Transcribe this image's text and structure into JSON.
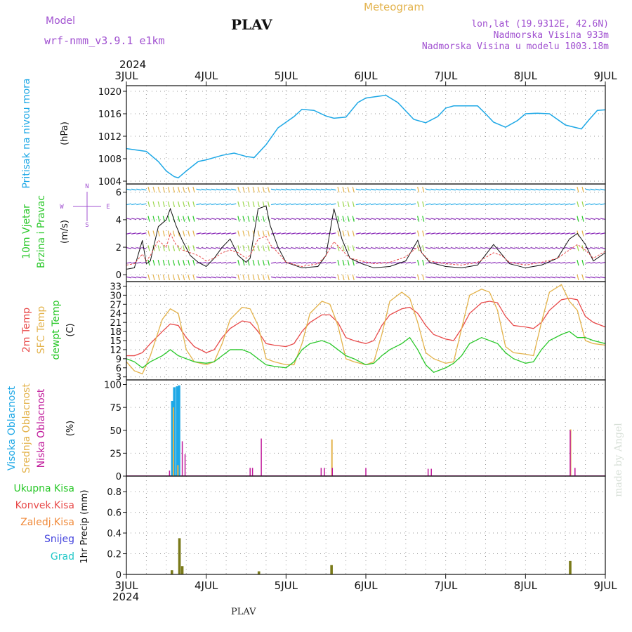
{
  "header": {
    "title": "PLAV",
    "model_label": "Model",
    "model_name": "wrf-nmm_v3.9.1 e1km",
    "meteogram_label": "Meteogram",
    "lonlat": "lon,lat (19.9312E, 42.6N)",
    "elevation": "Nadmorska Visina 933m",
    "model_elevation": "Nadmorska Visina u modelu 1003.18m",
    "year": "2024",
    "footer_title": "PLAV",
    "credit": "made by Angel"
  },
  "colors": {
    "pressure": "#1ea8e6",
    "temp2m": "#e84a4a",
    "sfc": "#e3b24a",
    "dewpt": "#2ac82a",
    "high_cloud": "#1ea8e6",
    "mid_cloud": "#e3b24a",
    "low_cloud": "#c0189a",
    "precip": "#7a7a1a",
    "label_green": "#2ac82a",
    "label_red": "#e84a4a",
    "label_orange": "#f08a3a",
    "label_blue": "#4444dd",
    "label_cyan": "#22c8c8",
    "label_purple": "#a050d0"
  },
  "x_axis": {
    "tick_labels": [
      "3JUL",
      "4JUL",
      "5JUL",
      "6JUL",
      "7JUL",
      "8JUL",
      "9JUL"
    ],
    "year_label": "2024"
  },
  "panels": {
    "pressure": {
      "ylabel_left": "Pritisak na nivou mora",
      "unit": "(hPa)",
      "ticks": [
        "1004",
        "1008",
        "1012",
        "1016",
        "1020"
      ]
    },
    "wind": {
      "ylabel_left1": "10m Vjetar",
      "ylabel_left2": "Brzina i Pravac",
      "unit": "(m/s)",
      "ticks": [
        "0",
        "2",
        "4",
        "6"
      ],
      "compass_n": "N",
      "compass_s": "S",
      "compass_w": "W",
      "compass_e": "E"
    },
    "temp": {
      "label_2m": "2m Temp",
      "label_sfc": "SFC Temp",
      "label_dew": "dewpt Temp",
      "unit": "(C)",
      "ticks": [
        "3",
        "6",
        "9",
        "12",
        "15",
        "18",
        "21",
        "24",
        "27",
        "30",
        "33"
      ]
    },
    "cloud": {
      "label_high": "Visoka Oblacnost",
      "label_mid": "Srednja Oblacnost",
      "label_low": "Niska Oblacnost",
      "unit": "(%)",
      "ticks": [
        "0",
        "25",
        "50",
        "75",
        "100"
      ]
    },
    "precip": {
      "labels": [
        "Ukupna Kisa",
        "Konvek.Kisa",
        "Zaledj.Kisa",
        "Snijeg",
        "Grad"
      ],
      "unit": "1hr Precip (mm)",
      "ticks": [
        "0",
        "0.2",
        "0.4",
        "0.6",
        "0.8"
      ]
    }
  },
  "chart_data": [
    {
      "type": "line",
      "title": "Pritisak na nivou mora",
      "ylabel": "(hPa)",
      "ylim": [
        1003.5,
        1021
      ],
      "x_unit": "days since 3JUL 00UTC",
      "x": [
        0.0,
        0.25,
        0.4,
        0.5,
        0.6,
        0.65,
        0.75,
        0.9,
        1.0,
        1.2,
        1.35,
        1.5,
        1.6,
        1.75,
        1.9,
        2.0,
        2.1,
        2.2,
        2.35,
        2.5,
        2.6,
        2.75,
        2.9,
        3.0,
        3.1,
        3.25,
        3.4,
        3.5,
        3.6,
        3.75,
        3.9,
        4.0,
        4.1,
        4.25,
        4.4,
        4.5,
        4.6,
        4.75,
        4.9,
        5.0,
        5.15,
        5.3,
        5.5,
        5.7,
        5.8,
        5.9,
        6.0
      ],
      "values": [
        1009.8,
        1009.3,
        1007.5,
        1005.8,
        1004.8,
        1004.6,
        1005.8,
        1007.5,
        1007.8,
        1008.6,
        1009.0,
        1008.4,
        1008.2,
        1010.5,
        1013.5,
        1014.5,
        1015.5,
        1016.8,
        1016.6,
        1015.6,
        1015.2,
        1015.4,
        1018.0,
        1018.8,
        1019.0,
        1019.3,
        1018.0,
        1016.5,
        1015.0,
        1014.4,
        1015.5,
        1017.0,
        1017.4,
        1017.4,
        1017.4,
        1016.0,
        1014.5,
        1013.6,
        1014.8,
        1016.0,
        1016.1,
        1016.0,
        1014.0,
        1013.3,
        1015.0,
        1016.6,
        1016.7
      ]
    },
    {
      "type": "line",
      "title": "10m Vjetar Brzina i Pravac",
      "ylabel": "(m/s)",
      "ylim": [
        -0.5,
        6.6
      ],
      "x": [
        0.0,
        0.1,
        0.2,
        0.25,
        0.3,
        0.4,
        0.5,
        0.55,
        0.62,
        0.7,
        0.8,
        0.9,
        1.0,
        1.1,
        1.2,
        1.3,
        1.4,
        1.5,
        1.55,
        1.65,
        1.75,
        1.8,
        1.9,
        2.0,
        2.2,
        2.4,
        2.5,
        2.6,
        2.7,
        2.8,
        2.95,
        3.1,
        3.3,
        3.5,
        3.6,
        3.65,
        3.7,
        3.8,
        4.0,
        4.2,
        4.4,
        4.6,
        4.7,
        4.8,
        5.0,
        5.2,
        5.4,
        5.55,
        5.65,
        5.75,
        5.85,
        6.0
      ],
      "series": [
        {
          "values": [
            0.4,
            0.5,
            2.5,
            0.8,
            1.0,
            3.5,
            4.0,
            4.8,
            3.6,
            2.5,
            1.4,
            0.9,
            0.6,
            1.2,
            2.0,
            2.6,
            1.4,
            0.9,
            1.2,
            4.8,
            5.0,
            3.6,
            2.0,
            0.9,
            0.5,
            0.6,
            1.4,
            4.8,
            2.6,
            1.2,
            0.8,
            0.5,
            0.6,
            1.0,
            2.0,
            2.5,
            1.6,
            0.9,
            0.6,
            0.5,
            0.7,
            2.2,
            1.5,
            0.8,
            0.5,
            0.7,
            1.2,
            2.6,
            3.0,
            2.2,
            1.0,
            1.6
          ]
        },
        {
          "values": [
            0.7,
            0.8,
            1.5,
            1.0,
            1.4,
            2.5,
            2.0,
            3.0,
            2.2,
            1.8,
            1.6,
            1.4,
            1.0,
            1.2,
            1.6,
            1.8,
            1.6,
            1.2,
            1.4,
            2.6,
            2.8,
            2.2,
            1.6,
            0.9,
            0.6,
            0.8,
            1.4,
            2.4,
            1.8,
            1.2,
            1.0,
            0.8,
            0.9,
            1.3,
            1.8,
            2.0,
            1.6,
            1.0,
            0.8,
            0.7,
            0.9,
            1.6,
            1.4,
            0.9,
            0.7,
            0.9,
            1.2,
            1.8,
            2.2,
            1.8,
            1.2,
            1.7
          ]
        }
      ]
    },
    {
      "type": "line",
      "title": "2m Temp / SFC Temp / dewpt Temp",
      "ylabel": "(C)",
      "ylim": [
        2,
        34.5
      ],
      "x": [
        0.0,
        0.1,
        0.2,
        0.3,
        0.45,
        0.55,
        0.65,
        0.75,
        0.85,
        1.0,
        1.1,
        1.2,
        1.3,
        1.45,
        1.55,
        1.65,
        1.75,
        1.85,
        2.0,
        2.1,
        2.2,
        2.3,
        2.45,
        2.55,
        2.65,
        2.75,
        2.85,
        3.0,
        3.1,
        3.2,
        3.3,
        3.45,
        3.55,
        3.65,
        3.75,
        3.85,
        4.0,
        4.1,
        4.2,
        4.3,
        4.45,
        4.55,
        4.65,
        4.75,
        4.85,
        5.0,
        5.1,
        5.2,
        5.3,
        5.45,
        5.55,
        5.65,
        5.75,
        5.85,
        6.0
      ],
      "series": [
        {
          "name": "2m Temp",
          "values": [
            10,
            10,
            11,
            14,
            18,
            20.5,
            20,
            16,
            13,
            11,
            12,
            16,
            19,
            21.5,
            21,
            18,
            14,
            13.5,
            13,
            14,
            18,
            21,
            23.5,
            23.5,
            21,
            16,
            15,
            14,
            15,
            20,
            23.5,
            25.5,
            26,
            24,
            20,
            17,
            15.5,
            15,
            19,
            24,
            27.5,
            28,
            27.5,
            23,
            20,
            19.5,
            19,
            21,
            25,
            28.5,
            29,
            28.5,
            23,
            21,
            19.5
          ]
        },
        {
          "name": "SFC Temp",
          "values": [
            8,
            5,
            4,
            10,
            22,
            25.5,
            24,
            12,
            8,
            7,
            8,
            14,
            22,
            26,
            25.5,
            20,
            9,
            8,
            7,
            7,
            14,
            24,
            28,
            27,
            20,
            9,
            8,
            7,
            8,
            17,
            28,
            31,
            29,
            21,
            11,
            9,
            7.5,
            8,
            19,
            30,
            32,
            31,
            25,
            13,
            11,
            10.5,
            10,
            21,
            31,
            33.5,
            28,
            25,
            15,
            14,
            13.5
          ]
        },
        {
          "name": "dewpt Temp",
          "values": [
            9,
            8,
            6,
            8,
            10,
            12,
            10,
            9,
            8,
            7.5,
            8,
            10,
            12,
            12,
            11,
            9,
            7,
            6.5,
            6,
            8,
            12,
            14,
            15,
            14,
            12,
            10,
            9,
            7,
            7.5,
            10,
            12,
            14,
            16,
            12,
            7,
            4.5,
            6,
            7.5,
            10,
            14,
            16,
            15,
            14,
            11,
            9,
            7.5,
            8,
            12,
            15,
            17,
            18,
            16,
            16,
            15,
            14
          ]
        }
      ]
    },
    {
      "type": "bar",
      "title": "Visoka / Srednja / Niska Oblacnost",
      "ylabel": "(%)",
      "ylim": [
        0,
        105
      ],
      "series": [
        {
          "name": "Visoka Oblacnost",
          "x": [
            0.575,
            0.6,
            0.635,
            0.66
          ],
          "values": [
            82,
            97,
            98,
            99
          ]
        },
        {
          "name": "Srednja Oblacnost",
          "x": [
            0.59,
            0.645,
            2.575,
            5.565
          ],
          "values": [
            75,
            12,
            40,
            51
          ]
        },
        {
          "name": "Niska Oblacnost",
          "x": [
            0.54,
            0.7,
            0.735,
            1.55,
            1.58,
            1.69,
            2.44,
            2.48,
            2.58,
            3.0,
            3.78,
            3.82,
            5.56,
            5.62
          ],
          "values": [
            6,
            38,
            24,
            9,
            9,
            41,
            9,
            9,
            9,
            9,
            8,
            8,
            50,
            9
          ]
        }
      ]
    },
    {
      "type": "bar",
      "title": "1hr Precip",
      "ylabel": "1hr Precip (mm)",
      "ylim": [
        0,
        0.95
      ],
      "x": [
        0.57,
        0.665,
        0.7,
        1.66,
        2.57,
        5.56
      ],
      "values": [
        0.04,
        0.35,
        0.08,
        0.03,
        0.09,
        0.13
      ]
    }
  ]
}
